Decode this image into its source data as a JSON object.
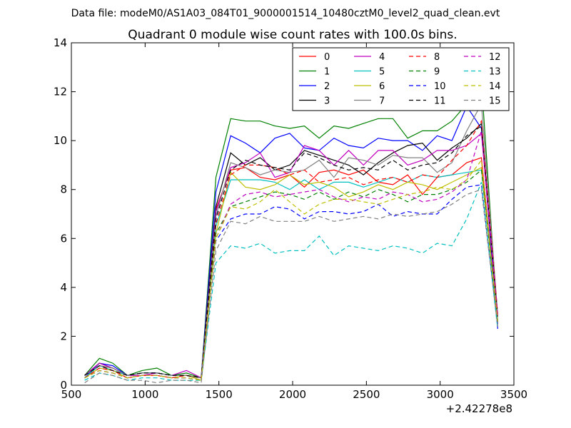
{
  "suptitle": "Data file: modeM0/AS1A03_084T01_9000001514_10480cztM0_level2_quad_clean.evt",
  "chart_data": {
    "type": "line",
    "title": "Quadrant 0 module wise count rates with 100.0s bins.",
    "xlabel": "",
    "ylabel": "",
    "xlim": [
      500,
      3500
    ],
    "ylim": [
      0,
      14
    ],
    "x_offset_label": "+2.42278e8",
    "x_ticks": [
      500,
      1000,
      1500,
      2000,
      2500,
      3000,
      3500
    ],
    "y_ticks": [
      0,
      2,
      4,
      6,
      8,
      10,
      12,
      14
    ],
    "grid": false,
    "legend_position": "top-right",
    "legend_columns": 4,
    "x": [
      590,
      690,
      780,
      880,
      980,
      1080,
      1180,
      1280,
      1380,
      1480,
      1580,
      1680,
      1780,
      1880,
      1980,
      2080,
      2180,
      2280,
      2380,
      2480,
      2580,
      2680,
      2780,
      2880,
      2980,
      3080,
      3180,
      3280,
      3390
    ],
    "series": [
      {
        "name": "0",
        "color": "#ff0000",
        "dash": "solid",
        "values": [
          0.4,
          0.8,
          0.7,
          0.4,
          0.5,
          0.5,
          0.4,
          0.4,
          0.3,
          7.2,
          8.8,
          8.9,
          8.5,
          8.4,
          8.6,
          8.1,
          8.7,
          8.8,
          8.6,
          8.8,
          8.3,
          8.2,
          8.6,
          7.8,
          8.5,
          8.6,
          9.1,
          9.3,
          2.5
        ]
      },
      {
        "name": "1",
        "color": "#008000",
        "dash": "solid",
        "values": [
          0.4,
          1.1,
          0.9,
          0.4,
          0.6,
          0.7,
          0.4,
          0.5,
          0.3,
          8.5,
          10.9,
          10.8,
          10.8,
          10.6,
          10.5,
          10.6,
          10.1,
          10.6,
          10.5,
          10.7,
          10.9,
          10.9,
          10.1,
          10.4,
          10.4,
          10.8,
          11.5,
          12.4,
          2.6
        ]
      },
      {
        "name": "2",
        "color": "#0000ff",
        "dash": "solid",
        "values": [
          0.3,
          0.9,
          0.8,
          0.4,
          0.5,
          0.5,
          0.4,
          0.4,
          0.3,
          7.9,
          10.2,
          9.9,
          9.5,
          10.1,
          10.3,
          9.7,
          9.6,
          10.1,
          9.8,
          9.7,
          10.1,
          10.0,
          10.0,
          9.6,
          10.2,
          10.0,
          11.4,
          10.5,
          2.3
        ]
      },
      {
        "name": "3",
        "color": "#000000",
        "dash": "solid",
        "values": [
          0.4,
          0.9,
          0.7,
          0.4,
          0.5,
          0.5,
          0.4,
          0.4,
          0.3,
          7.3,
          9.5,
          9.0,
          9.3,
          8.8,
          9.0,
          9.6,
          9.4,
          9.2,
          9.0,
          8.6,
          9.1,
          9.5,
          9.8,
          9.9,
          9.2,
          9.7,
          10.1,
          10.7,
          2.6
        ]
      },
      {
        "name": "4",
        "color": "#bf00bf",
        "dash": "solid",
        "values": [
          0.4,
          0.9,
          0.7,
          0.4,
          0.4,
          0.5,
          0.4,
          0.6,
          0.3,
          7.1,
          8.9,
          9.1,
          9.5,
          8.5,
          8.7,
          9.8,
          9.6,
          9.0,
          9.6,
          9.0,
          9.6,
          9.6,
          9.0,
          9.2,
          9.6,
          9.6,
          9.8,
          10.3,
          2.8
        ]
      },
      {
        "name": "5",
        "color": "#00bfbf",
        "dash": "solid",
        "values": [
          0.3,
          0.8,
          0.6,
          0.4,
          0.5,
          0.5,
          0.4,
          0.4,
          0.3,
          6.5,
          8.4,
          8.4,
          8.4,
          8.3,
          8.0,
          8.4,
          8.0,
          8.3,
          8.3,
          8.1,
          8.3,
          8.5,
          8.3,
          8.6,
          8.5,
          8.6,
          8.7,
          8.8,
          2.7
        ]
      },
      {
        "name": "6",
        "color": "#bfbf00",
        "dash": "solid",
        "values": [
          0.3,
          0.7,
          0.6,
          0.3,
          0.4,
          0.4,
          0.3,
          0.4,
          0.2,
          6.2,
          8.7,
          8.1,
          8.0,
          8.2,
          8.6,
          8.2,
          8.3,
          8.1,
          7.7,
          7.9,
          8.2,
          8.0,
          8.3,
          8.2,
          8.0,
          8.3,
          8.6,
          8.9,
          2.6
        ]
      },
      {
        "name": "7",
        "color": "#808080",
        "dash": "solid",
        "values": [
          0.4,
          0.8,
          0.7,
          0.4,
          0.5,
          0.5,
          0.4,
          0.4,
          0.3,
          6.9,
          9.1,
          8.9,
          8.6,
          8.8,
          8.7,
          8.8,
          9.2,
          8.5,
          9.3,
          9.2,
          9.0,
          9.4,
          9.3,
          9.3,
          8.7,
          9.1,
          10.4,
          11.5,
          2.9
        ]
      },
      {
        "name": "8",
        "color": "#ff0000",
        "dash": "dashed",
        "values": [
          0.3,
          0.7,
          0.6,
          0.3,
          0.4,
          0.4,
          0.3,
          0.4,
          0.3,
          6.6,
          8.6,
          9.0,
          9.0,
          8.9,
          8.6,
          8.8,
          8.3,
          8.4,
          8.5,
          8.2,
          8.4,
          8.5,
          8.3,
          8.6,
          8.5,
          9.2,
          9.8,
          10.8,
          2.9
        ]
      },
      {
        "name": "9",
        "color": "#008000",
        "dash": "dashed",
        "values": [
          0.3,
          0.6,
          0.5,
          0.3,
          0.4,
          0.4,
          0.3,
          0.3,
          0.2,
          6.2,
          7.3,
          7.5,
          7.7,
          7.9,
          7.8,
          7.6,
          7.9,
          7.6,
          7.9,
          7.7,
          8.0,
          7.8,
          7.5,
          7.8,
          7.8,
          8.0,
          8.3,
          8.8,
          2.6
        ]
      },
      {
        "name": "10",
        "color": "#0000ff",
        "dash": "dashed",
        "values": [
          0.3,
          0.6,
          0.5,
          0.3,
          0.4,
          0.4,
          0.3,
          0.3,
          0.2,
          5.9,
          6.8,
          7.0,
          7.0,
          7.3,
          7.2,
          6.8,
          7.1,
          7.1,
          7.0,
          7.1,
          7.4,
          6.9,
          7.1,
          7.0,
          7.0,
          7.6,
          8.1,
          8.2,
          2.4
        ]
      },
      {
        "name": "11",
        "color": "#000000",
        "dash": "dashed",
        "values": [
          0.4,
          0.8,
          0.6,
          0.4,
          0.5,
          0.5,
          0.4,
          0.4,
          0.3,
          6.8,
          8.8,
          9.2,
          9.0,
          8.9,
          8.8,
          9.5,
          9.3,
          9.0,
          8.8,
          8.9,
          8.8,
          9.2,
          8.8,
          9.0,
          9.1,
          9.5,
          10.2,
          10.6,
          2.7
        ]
      },
      {
        "name": "12",
        "color": "#bf00bf",
        "dash": "dashed",
        "values": [
          0.3,
          0.6,
          0.5,
          0.3,
          0.4,
          0.4,
          0.3,
          0.3,
          0.2,
          6.0,
          7.4,
          7.8,
          7.9,
          7.7,
          7.8,
          7.9,
          8.0,
          7.7,
          7.5,
          7.7,
          7.6,
          7.9,
          7.8,
          7.5,
          7.6,
          7.9,
          8.4,
          10.4,
          2.8
        ]
      },
      {
        "name": "13",
        "color": "#00bfbf",
        "dash": "dashed",
        "values": [
          0.2,
          0.5,
          0.4,
          0.2,
          0.3,
          0.3,
          0.2,
          0.2,
          0.2,
          5.0,
          5.7,
          5.6,
          5.8,
          5.4,
          5.5,
          5.5,
          6.1,
          5.3,
          5.7,
          5.6,
          5.5,
          5.7,
          5.6,
          5.4,
          5.8,
          5.7,
          6.8,
          8.3,
          2.3
        ]
      },
      {
        "name": "14",
        "color": "#bfbf00",
        "dash": "dashed",
        "values": [
          0.3,
          0.6,
          0.5,
          0.3,
          0.4,
          0.4,
          0.3,
          0.3,
          0.2,
          6.0,
          7.3,
          7.2,
          7.5,
          8.0,
          7.5,
          7.0,
          7.4,
          7.6,
          7.6,
          7.5,
          7.4,
          7.6,
          7.8,
          7.9,
          8.1,
          8.0,
          8.4,
          9.2,
          2.6
        ]
      },
      {
        "name": "15",
        "color": "#808080",
        "dash": "dashed",
        "values": [
          0.1,
          0.5,
          0.4,
          0.2,
          0.2,
          0.1,
          0.2,
          0.2,
          0.1,
          5.5,
          6.7,
          6.6,
          6.9,
          6.7,
          6.7,
          6.7,
          6.9,
          6.7,
          6.8,
          6.9,
          6.8,
          7.0,
          6.9,
          7.0,
          7.1,
          7.4,
          7.8,
          8.0,
          2.4
        ]
      }
    ]
  }
}
